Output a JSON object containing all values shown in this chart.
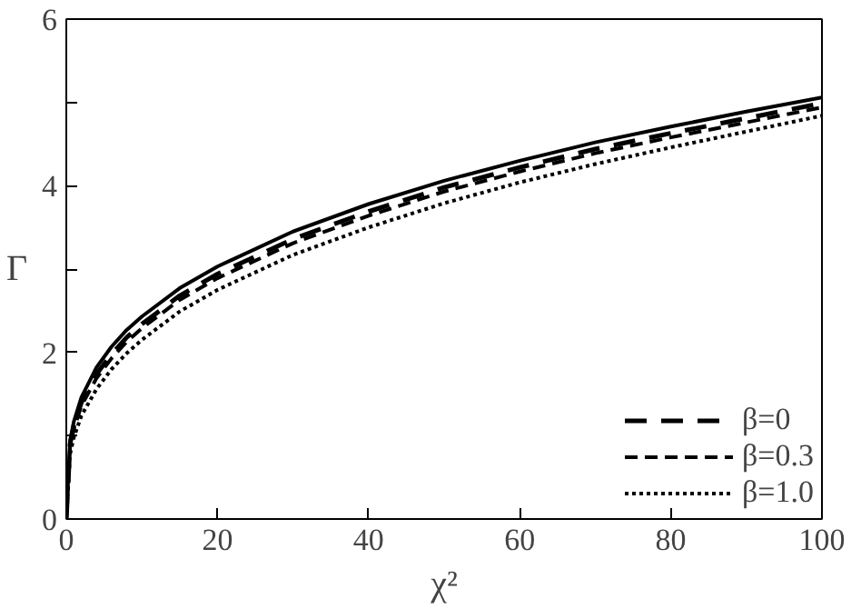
{
  "chart_data": {
    "type": "line",
    "xlabel": "χ²",
    "ylabel": "Γ",
    "x": [
      0,
      0.5,
      1,
      2,
      4,
      6,
      8,
      10,
      15,
      20,
      30,
      40,
      50,
      60,
      70,
      80,
      90,
      100
    ],
    "series": [
      {
        "color": "#000000",
        "line_style": "solid",
        "values": [
          0,
          0.94,
          1.17,
          1.46,
          1.82,
          2.07,
          2.27,
          2.43,
          2.77,
          3.03,
          3.45,
          3.78,
          4.06,
          4.3,
          4.52,
          4.71,
          4.89,
          5.06
        ]
      },
      {
        "name": "β=0",
        "color": "#000000",
        "line_style": "longdashed",
        "values": [
          0,
          0.9,
          1.12,
          1.4,
          1.74,
          1.98,
          2.18,
          2.34,
          2.68,
          2.94,
          3.36,
          3.69,
          3.98,
          4.22,
          4.44,
          4.63,
          4.81,
          4.99
        ]
      },
      {
        "name": "β=0.3",
        "color": "#000000",
        "line_style": "dashed",
        "values": [
          0,
          0.87,
          1.08,
          1.36,
          1.69,
          1.93,
          2.13,
          2.29,
          2.63,
          2.89,
          3.31,
          3.64,
          3.93,
          4.17,
          4.39,
          4.58,
          4.76,
          4.94
        ]
      },
      {
        "name": "β=1.0",
        "color": "#000000",
        "line_style": "dotted",
        "values": [
          0,
          0.78,
          0.98,
          1.24,
          1.56,
          1.8,
          1.99,
          2.15,
          2.49,
          2.75,
          3.17,
          3.5,
          3.79,
          4.04,
          4.26,
          4.46,
          4.65,
          4.84
        ]
      }
    ],
    "xlim": [
      0,
      100
    ],
    "ylim": [
      0,
      6
    ],
    "xticks": [
      0,
      20,
      40,
      60,
      80,
      100
    ],
    "yticks": [
      0,
      {
        "value": 1,
        "label": null
      },
      2,
      {
        "value": 3,
        "label": null
      },
      4,
      {
        "value": 5,
        "label": null
      },
      6
    ],
    "grid": false,
    "legend": "bottom right",
    "marker": "none"
  }
}
